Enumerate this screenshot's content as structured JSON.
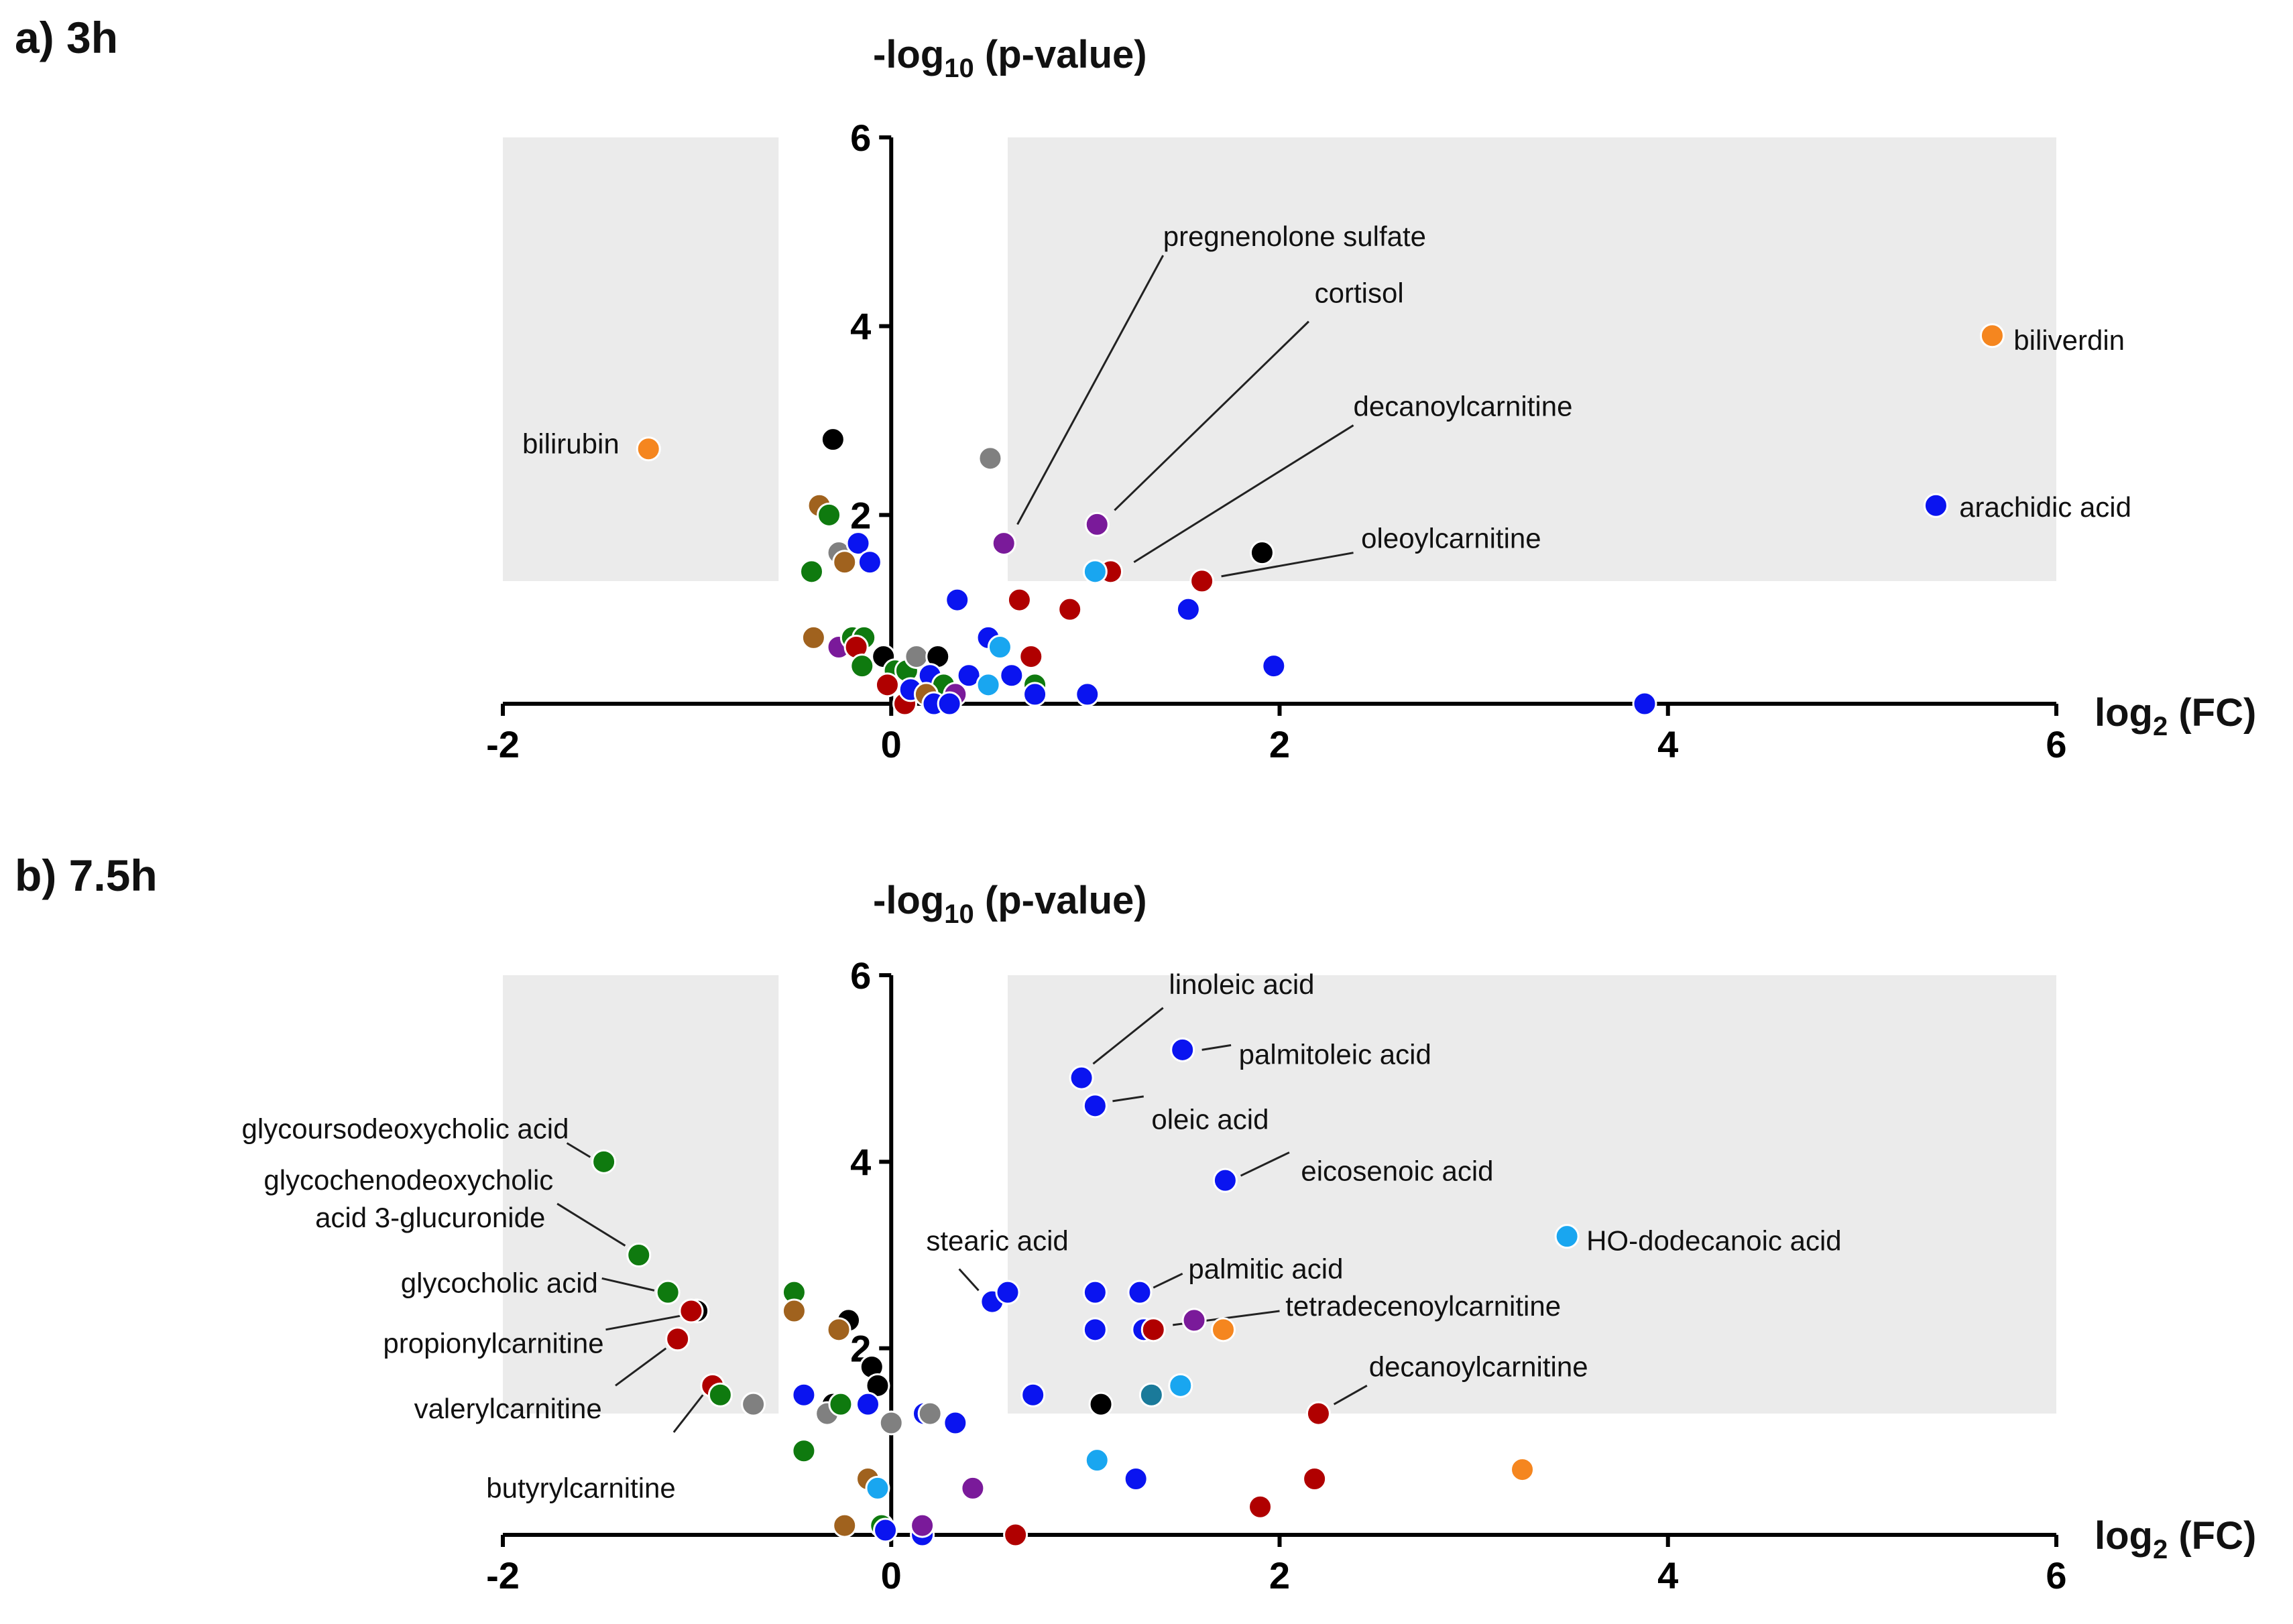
{
  "colors": {
    "black": "#000000",
    "grey": "#808080",
    "brown": "#a0621e",
    "orange": "#f5861f",
    "green": "#0f7a0f",
    "blue": "#0a14f0",
    "lightblue": "#19a6f0",
    "teal": "#1a7a9a",
    "purple": "#7a1a9a",
    "red": "#b00000",
    "shade": "#ebebeb"
  },
  "chart_data": [
    {
      "panel": "a) 3h",
      "type": "scatter",
      "ylabel": {
        "main": "-log",
        "sub": "10",
        "rest": " (p-value)"
      },
      "xlabel": {
        "main": "log",
        "sub": "2",
        "rest": " (FC)"
      },
      "xlim": [
        -2,
        6
      ],
      "ylim": [
        0,
        6
      ],
      "xticks": [
        -2,
        0,
        2,
        4,
        6
      ],
      "yticks": [
        2,
        4,
        6
      ],
      "shaded_regions": [
        {
          "x": [
            -2,
            -0.58
          ],
          "y": [
            1.3,
            6
          ]
        },
        {
          "x": [
            0.6,
            6
          ],
          "y": [
            1.3,
            6
          ]
        }
      ],
      "points": [
        {
          "x": -1.25,
          "y": 2.7,
          "c": "orange",
          "label": "bilirubin",
          "lx": -1.9,
          "ly": 2.75,
          "anchor": "start"
        },
        {
          "x": 5.67,
          "y": 3.9,
          "c": "orange",
          "label": "biliverdin",
          "lx": 5.78,
          "ly": 3.85,
          "anchor": "start"
        },
        {
          "x": 5.38,
          "y": 2.1,
          "c": "blue",
          "label": "arachidic acid",
          "lx": 5.5,
          "ly": 2.08,
          "anchor": "start"
        },
        {
          "x": 0.58,
          "y": 1.7,
          "c": "purple",
          "label": "pregnenolone sulfate",
          "lx": 1.4,
          "ly": 4.95,
          "anchor": "start",
          "line": [
            0.65,
            1.9,
            1.4,
            4.75
          ]
        },
        {
          "x": 1.06,
          "y": 1.9,
          "c": "purple",
          "label": "cortisol",
          "lx": 2.18,
          "ly": 4.35,
          "anchor": "start",
          "line": [
            1.15,
            2.05,
            2.15,
            4.05
          ]
        },
        {
          "x": 1.13,
          "y": 1.4,
          "c": "red",
          "label": "decanoylcarnitine",
          "lx": 2.38,
          "ly": 3.15,
          "anchor": "start",
          "line": [
            1.25,
            1.5,
            2.38,
            2.95
          ]
        },
        {
          "x": 1.6,
          "y": 1.3,
          "c": "red",
          "label": "oleoylcarnitine",
          "lx": 2.42,
          "ly": 1.75,
          "anchor": "start",
          "line": [
            1.7,
            1.35,
            2.38,
            1.6
          ]
        },
        {
          "x": 1.91,
          "y": 1.6,
          "c": "black"
        },
        {
          "x": 1.05,
          "y": 1.4,
          "c": "lightblue"
        },
        {
          "x": 0.51,
          "y": 2.6,
          "c": "grey"
        },
        {
          "x": -0.3,
          "y": 2.8,
          "c": "black"
        },
        {
          "x": -0.37,
          "y": 2.1,
          "c": "brown"
        },
        {
          "x": -0.32,
          "y": 2.0,
          "c": "green"
        },
        {
          "x": -0.27,
          "y": 1.6,
          "c": "grey"
        },
        {
          "x": -0.24,
          "y": 1.5,
          "c": "brown"
        },
        {
          "x": -0.17,
          "y": 1.7,
          "c": "blue"
        },
        {
          "x": -0.11,
          "y": 1.5,
          "c": "blue"
        },
        {
          "x": -0.41,
          "y": 1.4,
          "c": "green"
        },
        {
          "x": -0.4,
          "y": 0.7,
          "c": "brown"
        },
        {
          "x": -0.27,
          "y": 0.6,
          "c": "purple"
        },
        {
          "x": -0.2,
          "y": 0.7,
          "c": "green"
        },
        {
          "x": -0.14,
          "y": 0.7,
          "c": "green"
        },
        {
          "x": -0.18,
          "y": 0.6,
          "c": "red"
        },
        {
          "x": -0.15,
          "y": 0.4,
          "c": "green"
        },
        {
          "x": -0.04,
          "y": 0.5,
          "c": "black"
        },
        {
          "x": 0.02,
          "y": 0.35,
          "c": "green"
        },
        {
          "x": 0.08,
          "y": 0.35,
          "c": "green"
        },
        {
          "x": 0.13,
          "y": 0.5,
          "c": "grey"
        },
        {
          "x": 0.24,
          "y": 0.5,
          "c": "black"
        },
        {
          "x": 0.2,
          "y": 0.3,
          "c": "blue"
        },
        {
          "x": 0.27,
          "y": 0.2,
          "c": "green"
        },
        {
          "x": 0.33,
          "y": 0.1,
          "c": "purple"
        },
        {
          "x": -0.02,
          "y": 0.2,
          "c": "red"
        },
        {
          "x": 0.07,
          "y": 0.0,
          "c": "red"
        },
        {
          "x": 0.1,
          "y": 0.15,
          "c": "blue"
        },
        {
          "x": 0.18,
          "y": 0.1,
          "c": "brown"
        },
        {
          "x": 0.22,
          "y": 0.0,
          "c": "blue"
        },
        {
          "x": 0.3,
          "y": 0.0,
          "c": "blue"
        },
        {
          "x": 0.4,
          "y": 0.3,
          "c": "blue"
        },
        {
          "x": 0.34,
          "y": 1.1,
          "c": "blue"
        },
        {
          "x": 0.5,
          "y": 0.7,
          "c": "blue"
        },
        {
          "x": 0.56,
          "y": 0.6,
          "c": "lightblue"
        },
        {
          "x": 0.5,
          "y": 0.2,
          "c": "lightblue"
        },
        {
          "x": 0.62,
          "y": 0.3,
          "c": "blue"
        },
        {
          "x": 0.66,
          "y": 1.1,
          "c": "red"
        },
        {
          "x": 0.72,
          "y": 0.5,
          "c": "red"
        },
        {
          "x": 0.74,
          "y": 0.2,
          "c": "green"
        },
        {
          "x": 0.74,
          "y": 0.1,
          "c": "blue"
        },
        {
          "x": 0.92,
          "y": 1.0,
          "c": "red"
        },
        {
          "x": 1.01,
          "y": 0.1,
          "c": "blue"
        },
        {
          "x": 1.53,
          "y": 1.0,
          "c": "blue"
        },
        {
          "x": 1.97,
          "y": 0.4,
          "c": "blue"
        },
        {
          "x": 3.88,
          "y": 0.0,
          "c": "blue"
        }
      ]
    },
    {
      "panel": "b) 7.5h",
      "type": "scatter",
      "ylabel": {
        "main": "-log",
        "sub": "10",
        "rest": " (p-value)"
      },
      "xlabel": {
        "main": "log",
        "sub": "2",
        "rest": " (FC)"
      },
      "xlim": [
        -2,
        6
      ],
      "ylim": [
        0,
        6
      ],
      "xticks": [
        -2,
        0,
        2,
        4,
        6
      ],
      "yticks": [
        2,
        4,
        6
      ],
      "shaded_regions": [
        {
          "x": [
            -2,
            -0.58
          ],
          "y": [
            1.3,
            6
          ]
        },
        {
          "x": [
            0.6,
            6
          ],
          "y": [
            1.3,
            6
          ]
        }
      ],
      "points": [
        {
          "x": 0.98,
          "y": 4.9,
          "c": "blue",
          "label": "linoleic acid",
          "lx": 1.43,
          "ly": 5.9,
          "anchor": "start",
          "line": [
            1.04,
            5.05,
            1.4,
            5.65
          ]
        },
        {
          "x": 1.5,
          "y": 5.2,
          "c": "blue",
          "label": "palmitoleic acid",
          "lx": 1.79,
          "ly": 5.15,
          "anchor": "start",
          "line": [
            1.6,
            5.2,
            1.75,
            5.25
          ]
        },
        {
          "x": 1.05,
          "y": 4.6,
          "c": "blue",
          "label": "oleic acid",
          "lx": 1.34,
          "ly": 4.45,
          "anchor": "start",
          "line": [
            1.14,
            4.65,
            1.3,
            4.7
          ]
        },
        {
          "x": 1.72,
          "y": 3.8,
          "c": "blue",
          "label": "eicosenoic acid",
          "lx": 2.11,
          "ly": 3.9,
          "anchor": "start",
          "line": [
            1.8,
            3.85,
            2.05,
            4.1
          ]
        },
        {
          "x": 3.48,
          "y": 3.2,
          "c": "lightblue",
          "label": "HO-dodecanoic acid",
          "lx": 3.58,
          "ly": 3.15,
          "anchor": "start"
        },
        {
          "x": 0.52,
          "y": 2.5,
          "c": "blue",
          "label": "stearic acid",
          "lx": 0.18,
          "ly": 3.15,
          "anchor": "start",
          "line": [
            0.45,
            2.62,
            0.35,
            2.85
          ]
        },
        {
          "x": 0.6,
          "y": 2.6,
          "c": "blue"
        },
        {
          "x": 1.28,
          "y": 2.6,
          "c": "blue",
          "label": "palmitic acid",
          "lx": 1.53,
          "ly": 2.85,
          "anchor": "start",
          "line": [
            1.35,
            2.65,
            1.5,
            2.8
          ]
        },
        {
          "x": 1.05,
          "y": 2.6,
          "c": "blue"
        },
        {
          "x": 1.05,
          "y": 2.2,
          "c": "blue"
        },
        {
          "x": 1.3,
          "y": 2.2,
          "c": "blue"
        },
        {
          "x": 1.35,
          "y": 2.2,
          "c": "red",
          "label": "tetradecenoylcarnitine",
          "lx": 2.03,
          "ly": 2.45,
          "anchor": "start",
          "line": [
            1.45,
            2.25,
            2.0,
            2.4
          ]
        },
        {
          "x": 1.56,
          "y": 2.3,
          "c": "purple"
        },
        {
          "x": 1.71,
          "y": 2.2,
          "c": "orange"
        },
        {
          "x": 2.2,
          "y": 1.3,
          "c": "red",
          "label": "decanoylcarnitine",
          "lx": 2.46,
          "ly": 1.8,
          "anchor": "start",
          "line": [
            2.28,
            1.4,
            2.45,
            1.6
          ]
        },
        {
          "x": 1.49,
          "y": 1.6,
          "c": "lightblue"
        },
        {
          "x": 1.34,
          "y": 1.5,
          "c": "teal"
        },
        {
          "x": 1.08,
          "y": 1.4,
          "c": "black"
        },
        {
          "x": 0.73,
          "y": 1.5,
          "c": "blue"
        },
        {
          "x": 1.06,
          "y": 0.8,
          "c": "lightblue"
        },
        {
          "x": 1.26,
          "y": 0.6,
          "c": "blue"
        },
        {
          "x": 2.18,
          "y": 0.6,
          "c": "red"
        },
        {
          "x": 1.9,
          "y": 0.3,
          "c": "red"
        },
        {
          "x": 3.25,
          "y": 0.7,
          "c": "orange"
        },
        {
          "x": 0.42,
          "y": 0.5,
          "c": "purple"
        },
        {
          "x": 0.64,
          "y": 0.0,
          "c": "red"
        },
        {
          "x": 0.33,
          "y": 1.2,
          "c": "blue"
        },
        {
          "x": 0.17,
          "y": 1.3,
          "c": "blue"
        },
        {
          "x": 0.2,
          "y": 1.3,
          "c": "grey"
        },
        {
          "x": 0.16,
          "y": 0.0,
          "c": "blue"
        },
        {
          "x": 0.16,
          "y": 0.1,
          "c": "purple"
        },
        {
          "x": -1.48,
          "y": 4.0,
          "c": "green",
          "label": "glycoursodeoxycholic acid",
          "lx": -1.66,
          "ly": 4.35,
          "anchor": "end",
          "line": [
            -1.55,
            4.05,
            -1.67,
            4.2
          ]
        },
        {
          "x": -1.3,
          "y": 3.0,
          "c": "green",
          "label": "glycochenodeoxycholic",
          "label2": "acid 3-glucuronide",
          "lx": -1.74,
          "ly": 3.8,
          "anchor": "end",
          "line": [
            -1.37,
            3.1,
            -1.72,
            3.55
          ]
        },
        {
          "x": -1.15,
          "y": 2.6,
          "c": "green",
          "label": "glycocholic acid",
          "lx": -1.51,
          "ly": 2.7,
          "anchor": "end",
          "line": [
            -1.22,
            2.62,
            -1.49,
            2.75
          ]
        },
        {
          "x": -1.0,
          "y": 2.4,
          "c": "black"
        },
        {
          "x": -1.03,
          "y": 2.4,
          "c": "red",
          "label": "propionylcarnitine",
          "lx": -1.48,
          "ly": 2.05,
          "anchor": "end",
          "line": [
            -1.08,
            2.35,
            -1.47,
            2.2
          ]
        },
        {
          "x": -1.1,
          "y": 2.1,
          "c": "red",
          "label": "valerylcarnitine",
          "lx": -1.49,
          "ly": 1.35,
          "anchor": "end",
          "line": [
            -1.16,
            2.0,
            -1.42,
            1.6
          ]
        },
        {
          "x": -0.92,
          "y": 1.6,
          "c": "red",
          "label": "butyrylcarnitine",
          "lx": -1.11,
          "ly": 0.5,
          "anchor": "end",
          "line": [
            -0.97,
            1.5,
            -1.12,
            1.1
          ]
        },
        {
          "x": -0.88,
          "y": 1.5,
          "c": "green"
        },
        {
          "x": -0.71,
          "y": 1.4,
          "c": "grey"
        },
        {
          "x": -0.5,
          "y": 2.6,
          "c": "green"
        },
        {
          "x": -0.5,
          "y": 2.4,
          "c": "brown"
        },
        {
          "x": -0.45,
          "y": 1.5,
          "c": "blue"
        },
        {
          "x": -0.45,
          "y": 0.9,
          "c": "green"
        },
        {
          "x": -0.22,
          "y": 2.3,
          "c": "black"
        },
        {
          "x": -0.27,
          "y": 2.2,
          "c": "brown"
        },
        {
          "x": -0.1,
          "y": 1.8,
          "c": "black"
        },
        {
          "x": -0.07,
          "y": 1.6,
          "c": "black"
        },
        {
          "x": -0.3,
          "y": 1.4,
          "c": "black"
        },
        {
          "x": -0.33,
          "y": 1.3,
          "c": "grey"
        },
        {
          "x": -0.26,
          "y": 1.4,
          "c": "green"
        },
        {
          "x": -0.12,
          "y": 1.4,
          "c": "blue"
        },
        {
          "x": 0.0,
          "y": 1.2,
          "c": "grey"
        },
        {
          "x": -0.12,
          "y": 0.6,
          "c": "brown"
        },
        {
          "x": -0.07,
          "y": 0.5,
          "c": "lightblue"
        },
        {
          "x": -0.24,
          "y": 0.1,
          "c": "brown"
        },
        {
          "x": -0.05,
          "y": 0.1,
          "c": "green"
        },
        {
          "x": -0.03,
          "y": 0.05,
          "c": "blue"
        }
      ]
    }
  ],
  "panels": [
    {
      "label": "a) 3h"
    },
    {
      "label": "b) 7.5h"
    }
  ]
}
